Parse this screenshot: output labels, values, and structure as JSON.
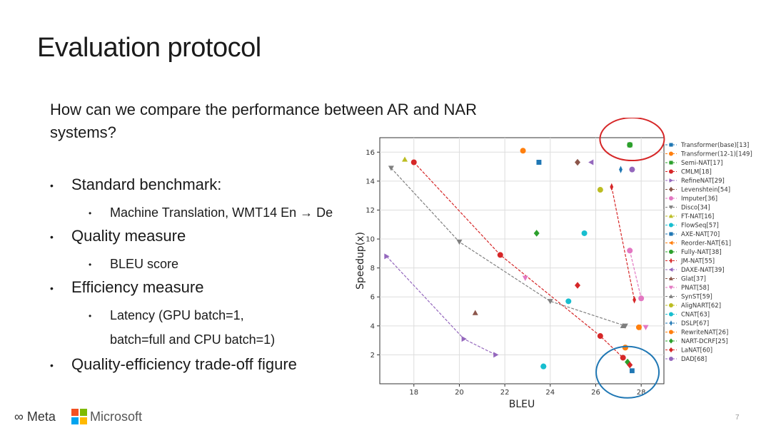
{
  "slide": {
    "title": "Evaluation protocol",
    "question": "How can we compare the performance between AR and NAR systems?",
    "bullets": [
      {
        "text": "Standard benchmark:",
        "sub": [
          "Machine Translation, WMT14 En → De"
        ]
      },
      {
        "text": "Quality measure",
        "sub": [
          "BLEU score"
        ]
      },
      {
        "text": "Efficiency measure",
        "sub": [
          "Latency (GPU batch=1,",
          "batch=full and CPU batch=1)"
        ]
      },
      {
        "text": "Quality-efficiency trade-off figure",
        "sub": []
      }
    ],
    "footer": {
      "meta": "Meta",
      "microsoft": "Microsoft"
    },
    "page_number": "7"
  },
  "chart_data": {
    "type": "scatter",
    "xlabel": "BLEU",
    "ylabel": "Speedup(x)",
    "xlim": [
      16.5,
      29
    ],
    "ylim": [
      0,
      17
    ],
    "xticks": [
      18,
      20,
      22,
      24,
      26,
      28
    ],
    "yticks": [
      2,
      4,
      6,
      8,
      10,
      12,
      14,
      16
    ],
    "grid": true,
    "legend_position": "right",
    "series": [
      {
        "name": "Transformer(base)[13]",
        "color": "#1f77b4",
        "marker": "square",
        "points": [
          [
            23.5,
            15.3
          ],
          [
            27.6,
            0.9
          ]
        ],
        "connect": false
      },
      {
        "name": "Transformer(12-1)[149]",
        "color": "#ff7f0e",
        "marker": "circle",
        "points": [
          [
            22.8,
            16.1
          ],
          [
            27.3,
            2.5
          ],
          [
            27.9,
            3.9
          ]
        ],
        "connect": false
      },
      {
        "name": "Semi-NAT[17]",
        "color": "#2ca02c",
        "marker": "square",
        "points": [
          [
            27.5,
            16.5
          ]
        ],
        "connect": false
      },
      {
        "name": "CMLM[18]",
        "color": "#d62728",
        "marker": "circle",
        "points": [
          [
            18.0,
            15.3
          ],
          [
            21.8,
            8.9
          ],
          [
            26.2,
            3.3
          ],
          [
            27.2,
            1.8
          ]
        ],
        "connect": true
      },
      {
        "name": "RefineNAT[29]",
        "color": "#9467bd",
        "marker": "triangle-right",
        "points": [
          [
            16.8,
            8.8
          ],
          [
            20.2,
            3.1
          ],
          [
            21.6,
            2.0
          ]
        ],
        "connect": true
      },
      {
        "name": "Levenshtein[54]",
        "color": "#8c564b",
        "marker": "diamond",
        "points": [
          [
            25.2,
            15.3
          ]
        ],
        "connect": false
      },
      {
        "name": "Imputer[36]",
        "color": "#e377c2",
        "marker": "circle",
        "points": [
          [
            27.5,
            9.2
          ],
          [
            28.0,
            5.9
          ]
        ],
        "connect": true
      },
      {
        "name": "Disco[34]",
        "color": "#7f7f7f",
        "marker": "triangle-down",
        "points": [
          [
            17.0,
            14.9
          ],
          [
            20.0,
            9.8
          ],
          [
            24.0,
            5.7
          ],
          [
            27.3,
            4.0
          ]
        ],
        "connect": true
      },
      {
        "name": "FT-NAT[16]",
        "color": "#bcbd22",
        "marker": "triangle-up",
        "points": [
          [
            17.6,
            15.5
          ]
        ],
        "connect": false
      },
      {
        "name": "FlowSeq[57]",
        "color": "#17becf",
        "marker": "circle",
        "points": [
          [
            25.5,
            10.4
          ],
          [
            24.8,
            5.7
          ],
          [
            23.7,
            1.2
          ]
        ],
        "connect": false
      },
      {
        "name": "AXE-NAT[70]",
        "color": "#1f77b4",
        "marker": "square",
        "points": [
          [
            23.5,
            15.3
          ]
        ],
        "connect": false
      },
      {
        "name": "Reorder-NAT[61]",
        "color": "#ff7f0e",
        "marker": "triangle-left",
        "points": [
          [
            27.9,
            3.9
          ]
        ],
        "connect": false
      },
      {
        "name": "Fully-NAT[38]",
        "color": "#2ca02c",
        "marker": "circle",
        "points": [
          [
            27.5,
            16.5
          ]
        ],
        "connect": false
      },
      {
        "name": "JM-NAT[55]",
        "color": "#d62728",
        "marker": "diamond-thin",
        "points": [
          [
            26.7,
            13.6
          ],
          [
            27.7,
            5.8
          ]
        ],
        "connect": true
      },
      {
        "name": "DAXE-NAT[39]",
        "color": "#9467bd",
        "marker": "triangle-left",
        "points": [
          [
            25.8,
            15.3
          ]
        ],
        "connect": false
      },
      {
        "name": "Glat[37]",
        "color": "#8c564b",
        "marker": "triangle-up",
        "points": [
          [
            20.7,
            4.9
          ]
        ],
        "connect": false
      },
      {
        "name": "PNAT[58]",
        "color": "#e377c2",
        "marker": "triangle-down",
        "points": [
          [
            22.9,
            7.3
          ],
          [
            28.2,
            3.9
          ]
        ],
        "connect": false
      },
      {
        "name": "SynST[59]",
        "color": "#7f7f7f",
        "marker": "triangle-up",
        "points": [
          [
            27.2,
            4.0
          ]
        ],
        "connect": false
      },
      {
        "name": "AligNART[62]",
        "color": "#bcbd22",
        "marker": "circle",
        "points": [
          [
            26.2,
            13.4
          ]
        ],
        "connect": false
      },
      {
        "name": "CNAT[63]",
        "color": "#17becf",
        "marker": "circle",
        "points": [
          [
            23.7,
            1.2
          ]
        ],
        "connect": false
      },
      {
        "name": "DSLP[67]",
        "color": "#1f77b4",
        "marker": "diamond-thin",
        "points": [
          [
            27.1,
            14.8
          ]
        ],
        "connect": false
      },
      {
        "name": "RewriteNAT[26]",
        "color": "#ff7f0e",
        "marker": "circle",
        "points": [
          [
            27.3,
            2.5
          ]
        ],
        "connect": false
      },
      {
        "name": "NART-DCRF[25]",
        "color": "#2ca02c",
        "marker": "diamond",
        "points": [
          [
            23.4,
            10.4
          ],
          [
            27.4,
            1.5
          ]
        ],
        "connect": false
      },
      {
        "name": "LaNAT[60]",
        "color": "#d62728",
        "marker": "diamond",
        "points": [
          [
            25.2,
            6.8
          ],
          [
            27.5,
            1.3
          ]
        ],
        "connect": false
      },
      {
        "name": "DAD[68]",
        "color": "#9467bd",
        "marker": "circle",
        "points": [
          [
            27.6,
            14.8
          ]
        ],
        "connect": false
      }
    ],
    "annotations": [
      {
        "type": "circle",
        "color": "#d62728",
        "description": "top-right (high speedup, high BLEU)"
      },
      {
        "type": "circle",
        "color": "#1f77b4",
        "description": "bottom-right (low speedup, high BLEU)"
      }
    ]
  }
}
